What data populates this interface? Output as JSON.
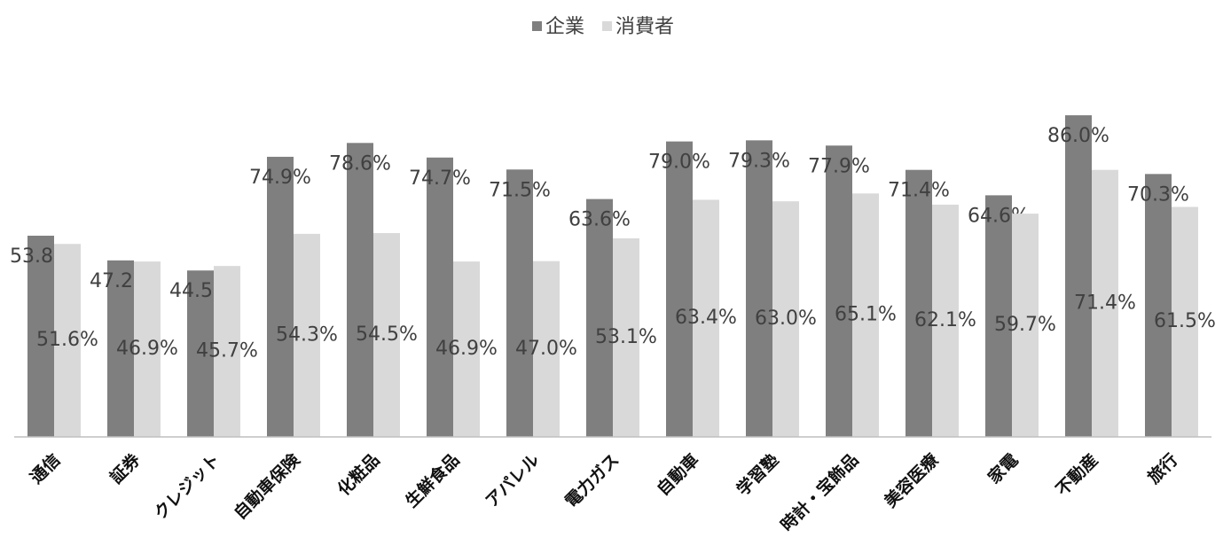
{
  "chart_data": {
    "type": "bar",
    "categories": [
      "通信",
      "証券",
      "クレジット",
      "自動車保険",
      "化粧品",
      "生鮮食品",
      "アパレル",
      "電力ガス",
      "自動車",
      "学習塾",
      "時計・宝飾品",
      "美容医療",
      "家電",
      "不動産",
      "旅行"
    ],
    "series": [
      {
        "name": "企業",
        "color": "#7f7f7f",
        "values": [
          53.8,
          47.2,
          44.5,
          74.9,
          78.6,
          74.7,
          71.5,
          63.6,
          79.0,
          79.3,
          77.9,
          71.4,
          64.6,
          86.0,
          70.3
        ],
        "value_labels": [
          "53.8%",
          "47.2%",
          "44.5%",
          "74.9%",
          "78.6%",
          "74.7%",
          "71.5%",
          "63.6%",
          "79.0%",
          "79.3%",
          "77.9%",
          "71.4%",
          "64.6%",
          "86.0%",
          "70.3%"
        ]
      },
      {
        "name": "消費者",
        "color": "#d9d9d9",
        "values": [
          51.6,
          46.9,
          45.7,
          54.3,
          54.5,
          46.9,
          47.0,
          53.1,
          63.4,
          63.0,
          65.1,
          62.1,
          59.7,
          71.4,
          61.5
        ],
        "value_labels": [
          "51.6%",
          "46.9%",
          "45.7%",
          "54.3%",
          "54.5%",
          "46.9%",
          "47.0%",
          "53.1%",
          "63.4%",
          "63.0%",
          "65.1%",
          "62.1%",
          "59.7%",
          "71.4%",
          "61.5%"
        ]
      }
    ],
    "ylim": [
      0,
      100
    ],
    "legend": "top"
  }
}
